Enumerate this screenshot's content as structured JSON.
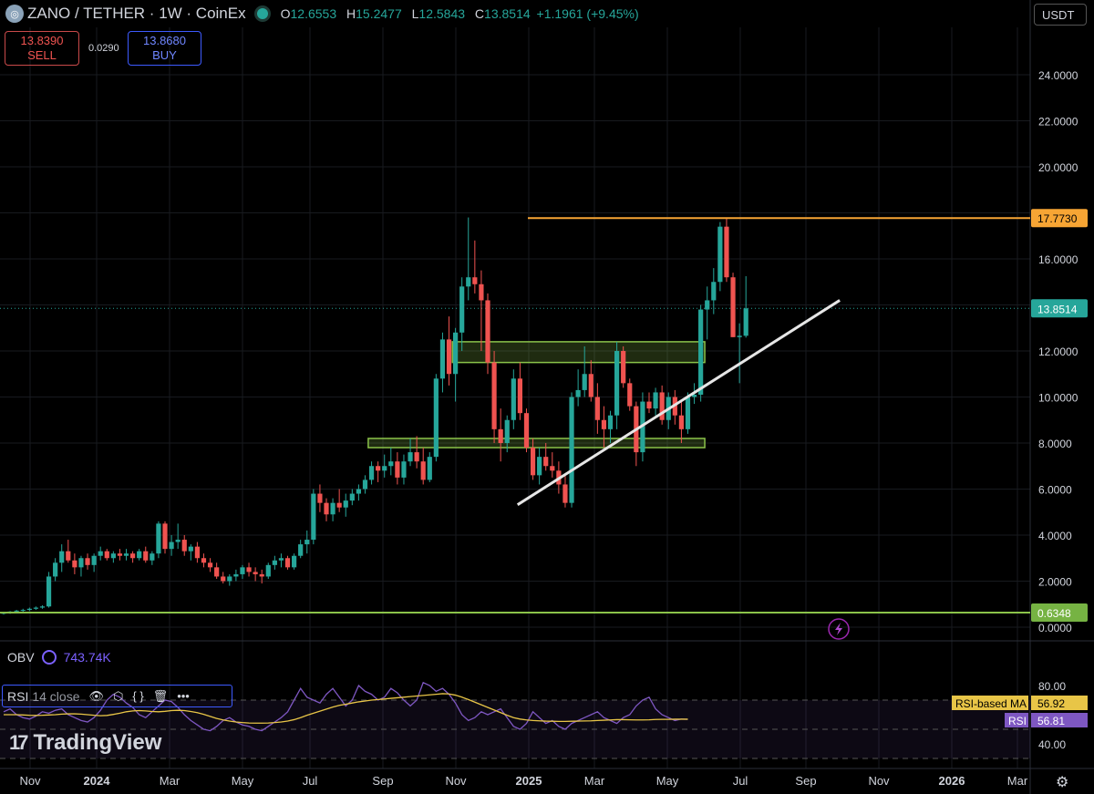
{
  "header": {
    "symbol": "ZANO / TETHER · 1W · CoinEx",
    "open_label": "O",
    "open": "12.6553",
    "high_label": "H",
    "high": "15.2477",
    "low_label": "L",
    "low": "12.5843",
    "close_label": "C",
    "close": "13.8514",
    "change": "+1.1961 (+9.45%)"
  },
  "trade": {
    "sell_price": "13.8390",
    "sell_label": "SELL",
    "spread": "0.0290",
    "buy_price": "13.8680",
    "buy_label": "BUY"
  },
  "currency": "USDT",
  "colors": {
    "up": "#26a69a",
    "down": "#ef5350",
    "resistance": "#f7a534",
    "support": "#8bc34a",
    "rsi": "#7e57c2",
    "rsi_ma": "#e8c547"
  },
  "chart_data": {
    "type": "candlestick",
    "price_axis": {
      "min": 0,
      "max": 24,
      "ticks": [
        "24.0000",
        "22.0000",
        "20.0000",
        "18.0000",
        "16.0000",
        "14.0000",
        "12.0000",
        "10.0000",
        "8.0000",
        "6.0000",
        "4.0000",
        "2.0000",
        "0.0000"
      ]
    },
    "time_axis": [
      "Nov",
      "2024",
      "Mar",
      "May",
      "Jul",
      "Sep",
      "Nov",
      "2025",
      "Mar",
      "May",
      "Jul",
      "Sep",
      "Nov",
      "2026",
      "Mar"
    ],
    "last_price": "13.8514",
    "levels": [
      {
        "label": "17.7730",
        "value": 17.773,
        "color": "#f7a534"
      },
      {
        "label": "0.6348",
        "value": 0.6348,
        "color": "#8bc34a"
      }
    ],
    "zones": [
      {
        "low": 11.5,
        "high": 12.4,
        "start": "2025-02",
        "end": "2025-11"
      },
      {
        "low": 7.8,
        "high": 8.2,
        "start": "2024-11",
        "end": "2025-11"
      }
    ],
    "trendline": {
      "from": {
        "date": "2025-04",
        "value": 5.2
      },
      "to": {
        "date": "2026-03",
        "value": 14.2
      }
    },
    "candles": [
      [
        0.6,
        0.65,
        0.55,
        0.62
      ],
      [
        0.62,
        0.7,
        0.58,
        0.68
      ],
      [
        0.68,
        0.75,
        0.6,
        0.72
      ],
      [
        0.72,
        0.8,
        0.65,
        0.75
      ],
      [
        0.75,
        0.85,
        0.7,
        0.8
      ],
      [
        0.8,
        0.9,
        0.75,
        0.85
      ],
      [
        0.85,
        0.95,
        0.8,
        0.9
      ],
      [
        0.9,
        2.4,
        0.85,
        2.2
      ],
      [
        2.2,
        3.0,
        2.0,
        2.8
      ],
      [
        2.8,
        3.6,
        2.4,
        3.3
      ],
      [
        3.3,
        3.8,
        2.8,
        2.9
      ],
      [
        2.9,
        3.2,
        2.3,
        2.6
      ],
      [
        2.6,
        3.1,
        2.2,
        3.0
      ],
      [
        3.0,
        3.2,
        2.5,
        2.7
      ],
      [
        2.7,
        3.2,
        2.4,
        3.1
      ],
      [
        3.1,
        3.5,
        2.9,
        3.3
      ],
      [
        3.3,
        3.4,
        2.9,
        3.0
      ],
      [
        3.0,
        3.3,
        2.8,
        3.2
      ],
      [
        3.2,
        3.4,
        2.9,
        3.1
      ],
      [
        3.1,
        3.4,
        2.9,
        3.2
      ],
      [
        3.2,
        3.3,
        2.8,
        3.0
      ],
      [
        3.0,
        3.4,
        2.9,
        3.3
      ],
      [
        3.3,
        3.5,
        2.8,
        2.9
      ],
      [
        2.9,
        3.3,
        2.7,
        3.2
      ],
      [
        3.2,
        4.6,
        3.0,
        4.5
      ],
      [
        4.5,
        4.6,
        3.2,
        3.4
      ],
      [
        3.4,
        4.0,
        3.1,
        3.7
      ],
      [
        3.7,
        4.5,
        3.4,
        3.8
      ],
      [
        3.8,
        4.0,
        3.1,
        3.3
      ],
      [
        3.3,
        3.6,
        2.9,
        3.5
      ],
      [
        3.5,
        3.7,
        2.8,
        3.0
      ],
      [
        3.0,
        3.2,
        2.6,
        2.8
      ],
      [
        2.8,
        3.0,
        2.4,
        2.6
      ],
      [
        2.6,
        2.8,
        2.1,
        2.2
      ],
      [
        2.2,
        2.4,
        1.9,
        2.0
      ],
      [
        2.0,
        2.3,
        1.8,
        2.2
      ],
      [
        2.2,
        2.5,
        2.0,
        2.3
      ],
      [
        2.3,
        2.7,
        2.1,
        2.6
      ],
      [
        2.6,
        2.8,
        2.2,
        2.4
      ],
      [
        2.4,
        2.6,
        2.0,
        2.3
      ],
      [
        2.3,
        2.5,
        1.9,
        2.2
      ],
      [
        2.2,
        2.8,
        2.1,
        2.7
      ],
      [
        2.7,
        3.1,
        2.5,
        2.9
      ],
      [
        2.9,
        3.2,
        2.6,
        3.0
      ],
      [
        3.0,
        3.1,
        2.5,
        2.6
      ],
      [
        2.6,
        3.2,
        2.5,
        3.1
      ],
      [
        3.1,
        3.8,
        3.0,
        3.6
      ],
      [
        3.6,
        4.2,
        3.2,
        3.8
      ],
      [
        3.8,
        6.0,
        3.6,
        5.8
      ],
      [
        5.8,
        6.2,
        5.0,
        5.4
      ],
      [
        5.4,
        5.6,
        4.6,
        4.9
      ],
      [
        4.9,
        5.6,
        4.6,
        5.4
      ],
      [
        5.4,
        6.0,
        5.0,
        5.2
      ],
      [
        5.2,
        5.8,
        4.8,
        5.5
      ],
      [
        5.5,
        6.0,
        5.3,
        5.8
      ],
      [
        5.8,
        6.2,
        5.5,
        6.0
      ],
      [
        6.0,
        6.6,
        5.8,
        6.4
      ],
      [
        6.4,
        7.2,
        6.2,
        7.0
      ],
      [
        7.0,
        7.2,
        6.3,
        6.8
      ],
      [
        6.8,
        7.5,
        6.5,
        7.0
      ],
      [
        7.0,
        7.8,
        6.6,
        7.2
      ],
      [
        7.2,
        7.6,
        6.2,
        6.5
      ],
      [
        6.5,
        7.5,
        6.2,
        7.2
      ],
      [
        7.2,
        8.2,
        7.0,
        7.6
      ],
      [
        7.6,
        8.3,
        6.9,
        7.2
      ],
      [
        7.2,
        7.8,
        6.2,
        6.4
      ],
      [
        6.4,
        7.6,
        6.3,
        7.4
      ],
      [
        7.4,
        11.0,
        7.2,
        10.8
      ],
      [
        10.8,
        12.8,
        10.2,
        12.5
      ],
      [
        12.5,
        13.5,
        10.5,
        11.0
      ],
      [
        11.0,
        13.0,
        9.8,
        12.8
      ],
      [
        12.8,
        15.2,
        12.0,
        14.8
      ],
      [
        14.8,
        17.8,
        14.2,
        15.2
      ],
      [
        15.2,
        16.8,
        14.5,
        14.9
      ],
      [
        14.9,
        15.5,
        12.0,
        14.2
      ],
      [
        14.2,
        14.5,
        11.0,
        11.5
      ],
      [
        11.5,
        12.0,
        8.0,
        8.6
      ],
      [
        8.6,
        9.5,
        7.2,
        8.0
      ],
      [
        8.0,
        9.2,
        7.6,
        9.0
      ],
      [
        9.0,
        11.2,
        8.6,
        10.8
      ],
      [
        10.8,
        11.5,
        9.0,
        9.3
      ],
      [
        9.3,
        9.5,
        7.6,
        7.8
      ],
      [
        7.8,
        8.2,
        6.4,
        6.6
      ],
      [
        6.6,
        7.8,
        6.2,
        7.4
      ],
      [
        7.4,
        8.0,
        6.8,
        7.0
      ],
      [
        7.0,
        7.6,
        6.5,
        6.8
      ],
      [
        6.8,
        7.2,
        5.8,
        6.2
      ],
      [
        6.2,
        6.6,
        5.2,
        5.4
      ],
      [
        5.4,
        10.2,
        5.2,
        10.0
      ],
      [
        10.0,
        11.2,
        9.6,
        10.3
      ],
      [
        10.3,
        12.2,
        10.0,
        11.0
      ],
      [
        11.0,
        11.6,
        9.8,
        10.0
      ],
      [
        10.0,
        10.6,
        8.4,
        9.0
      ],
      [
        9.0,
        9.6,
        7.8,
        8.6
      ],
      [
        8.6,
        9.4,
        8.0,
        9.2
      ],
      [
        9.2,
        12.4,
        8.6,
        12.0
      ],
      [
        12.0,
        12.2,
        10.4,
        10.6
      ],
      [
        10.6,
        10.8,
        9.4,
        9.6
      ],
      [
        9.6,
        9.8,
        7.0,
        7.6
      ],
      [
        7.6,
        10.2,
        7.2,
        9.8
      ],
      [
        9.8,
        10.2,
        9.3,
        9.5
      ],
      [
        9.5,
        10.4,
        9.2,
        10.2
      ],
      [
        10.2,
        10.5,
        8.8,
        9.0
      ],
      [
        9.0,
        10.2,
        8.6,
        10.0
      ],
      [
        10.0,
        10.3,
        8.8,
        9.2
      ],
      [
        9.2,
        9.8,
        8.0,
        8.6
      ],
      [
        8.6,
        10.2,
        8.4,
        10.0
      ],
      [
        10.0,
        10.6,
        9.7,
        10.1
      ],
      [
        10.1,
        14.0,
        9.8,
        13.8
      ],
      [
        13.8,
        14.8,
        12.5,
        14.2
      ],
      [
        14.2,
        15.6,
        13.6,
        15.0
      ],
      [
        15.0,
        17.6,
        14.6,
        17.4
      ],
      [
        17.4,
        17.8,
        15.0,
        15.2
      ],
      [
        15.2,
        15.4,
        12.6,
        12.6
      ],
      [
        12.6,
        13.2,
        10.6,
        12.66
      ],
      [
        12.66,
        15.25,
        12.58,
        13.85
      ]
    ],
    "start_date": "2023-10-01",
    "interval": "1W",
    "indicators": {
      "obv": {
        "label": "OBV",
        "value": "743.74K"
      },
      "rsi": {
        "label": "RSI",
        "params": "14 close",
        "axis": {
          "ticks": [
            "80.00",
            "40.00"
          ]
        },
        "rsi_label": "RSI",
        "rsi_value": "56.81",
        "ma_label": "RSI-based MA",
        "ma_value": "56.92",
        "rsi_points": [
          62,
          64,
          60,
          58,
          57,
          59,
          62,
          61,
          63,
          64,
          60,
          58,
          56,
          55,
          58,
          63,
          70,
          74,
          72,
          68,
          65,
          60,
          58,
          62,
          66,
          70,
          69,
          65,
          60,
          56,
          53,
          50,
          49,
          52,
          56,
          58,
          55,
          53,
          52,
          50,
          49,
          52,
          55,
          58,
          62,
          70,
          78,
          72,
          70,
          68,
          74,
          78,
          72,
          66,
          70,
          80,
          76,
          74,
          70,
          72,
          78,
          75,
          70,
          66,
          70,
          82,
          80,
          76,
          78,
          74,
          68,
          60,
          56,
          58,
          62,
          60,
          62,
          64,
          58,
          52,
          50,
          54,
          62,
          58,
          54,
          56,
          52,
          50,
          54,
          56,
          58,
          60,
          62,
          58,
          56,
          54,
          58,
          60,
          66,
          70,
          72,
          64,
          60,
          58,
          56,
          57,
          56.81
        ],
        "ma_points": [
          60,
          60,
          60,
          59.8,
          59.6,
          59.5,
          59.6,
          59.8,
          60,
          60.4,
          60.6,
          60.6,
          60.4,
          60,
          59.6,
          59.3,
          59.5,
          60.2,
          61,
          62,
          62.6,
          62.8,
          62.6,
          62.2,
          62,
          62.3,
          62.8,
          63,
          62.8,
          62.2,
          61.4,
          60.2,
          58.8,
          57.4,
          56.4,
          55.6,
          55,
          54.6,
          54.3,
          54.2,
          54.2,
          54.3,
          54.6,
          55,
          55.6,
          56.6,
          58,
          59.6,
          61,
          62.4,
          63.8,
          65.2,
          66.4,
          67.2,
          68,
          68.8,
          69.4,
          70,
          70.4,
          70.8,
          71.2,
          71.6,
          72,
          72.4,
          72.8,
          73.2,
          73.6,
          74,
          74.4,
          74.2,
          73.4,
          72,
          70.4,
          68.6,
          66.8,
          65,
          63.2,
          61.4,
          59.6,
          58,
          57,
          56.4,
          56,
          55.8,
          55.6,
          55.5,
          55.4,
          55.4,
          55.5,
          55.6,
          55.7,
          55.8,
          56,
          56.2,
          56.4,
          56.6,
          56.6,
          56.5,
          56.4,
          56.4,
          56.5,
          56.7,
          56.8,
          56.8,
          56.9,
          56.9,
          56.92
        ]
      }
    }
  },
  "branding": {
    "name": "TradingView"
  }
}
